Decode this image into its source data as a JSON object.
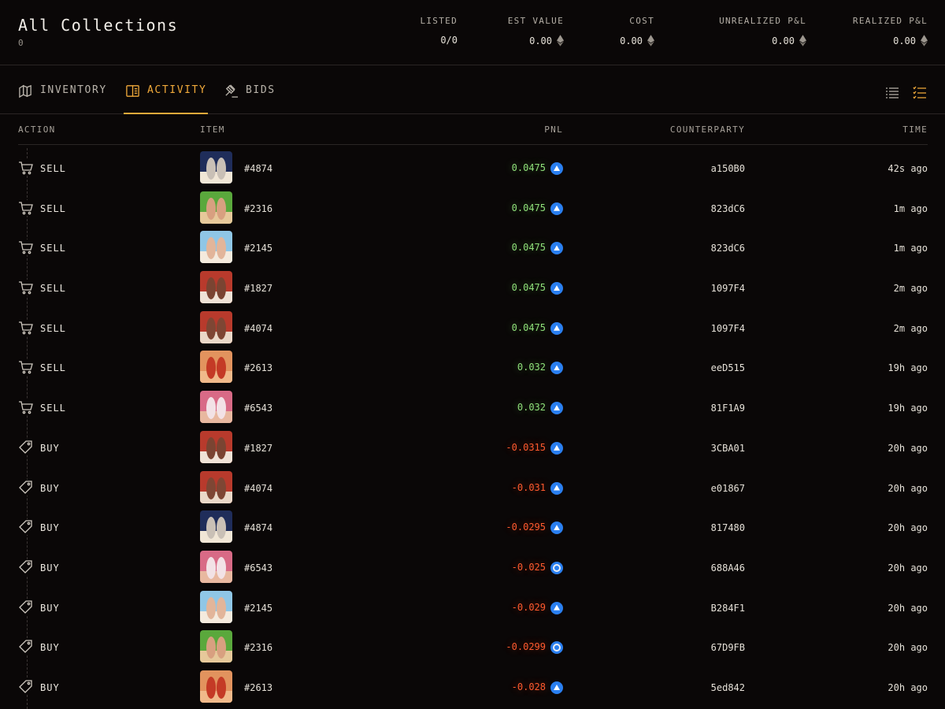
{
  "header": {
    "title": "All Collections",
    "subtitle": "0",
    "stats": [
      {
        "label": "LISTED",
        "value": "0/0",
        "eth": false
      },
      {
        "label": "EST VALUE",
        "value": "0.00",
        "eth": true
      },
      {
        "label": "COST",
        "value": "0.00",
        "eth": true
      },
      {
        "label": "UNREALIZED P&L",
        "value": "0.00",
        "eth": true
      },
      {
        "label": "REALIZED P&L",
        "value": "0.00",
        "eth": true
      }
    ]
  },
  "tabs": [
    {
      "label": "INVENTORY",
      "icon": "inventory-icon",
      "active": false
    },
    {
      "label": "ACTIVITY",
      "icon": "activity-icon",
      "active": true
    },
    {
      "label": "BIDS",
      "icon": "gavel-icon",
      "active": false
    }
  ],
  "table": {
    "columns": {
      "action": "ACTION",
      "item": "ITEM",
      "pnl": "PNL",
      "counterparty": "COUNTERPARTY",
      "time": "TIME"
    },
    "rows": [
      {
        "action": "SELL",
        "item": "#4874",
        "pnl": "0.0475",
        "market": "blur",
        "counterparty": "a150B0",
        "time": "42s ago",
        "thumb": [
          "#1f2d5a",
          "#c9c0b6",
          "#f0e6d6"
        ]
      },
      {
        "action": "SELL",
        "item": "#2316",
        "pnl": "0.0475",
        "market": "blur",
        "counterparty": "823dC6",
        "time": "1m ago",
        "thumb": [
          "#5aa83c",
          "#d8a080",
          "#e6c89a"
        ]
      },
      {
        "action": "SELL",
        "item": "#2145",
        "pnl": "0.0475",
        "market": "blur",
        "counterparty": "823dC6",
        "time": "1m ago",
        "thumb": [
          "#8fc6e6",
          "#e2b59a",
          "#f4eadd"
        ]
      },
      {
        "action": "SELL",
        "item": "#1827",
        "pnl": "0.0475",
        "market": "blur",
        "counterparty": "1097F4",
        "time": "2m ago",
        "thumb": [
          "#b83a2c",
          "#7a4432",
          "#efe2d6"
        ]
      },
      {
        "action": "SELL",
        "item": "#4074",
        "pnl": "0.0475",
        "market": "blur",
        "counterparty": "1097F4",
        "time": "2m ago",
        "thumb": [
          "#b83a2c",
          "#7e4634",
          "#ead8c8"
        ]
      },
      {
        "action": "SELL",
        "item": "#2613",
        "pnl": "0.032",
        "market": "blur",
        "counterparty": "eeD515",
        "time": "19h ago",
        "thumb": [
          "#e2935e",
          "#c43a26",
          "#f0b98a"
        ]
      },
      {
        "action": "SELL",
        "item": "#6543",
        "pnl": "0.032",
        "market": "blur",
        "counterparty": "81F1A9",
        "time": "19h ago",
        "thumb": [
          "#d86a86",
          "#f2e2e6",
          "#e8b8a0"
        ]
      },
      {
        "action": "BUY",
        "item": "#1827",
        "pnl": "-0.0315",
        "market": "blur",
        "counterparty": "3CBA01",
        "time": "20h ago",
        "thumb": [
          "#b83a2c",
          "#7a4432",
          "#efe2d6"
        ]
      },
      {
        "action": "BUY",
        "item": "#4074",
        "pnl": "-0.031",
        "market": "blur",
        "counterparty": "e01867",
        "time": "20h ago",
        "thumb": [
          "#b83a2c",
          "#7e4634",
          "#ead8c8"
        ]
      },
      {
        "action": "BUY",
        "item": "#4874",
        "pnl": "-0.0295",
        "market": "blur",
        "counterparty": "817480",
        "time": "20h ago",
        "thumb": [
          "#1f2d5a",
          "#c9c0b6",
          "#f0e6d6"
        ]
      },
      {
        "action": "BUY",
        "item": "#6543",
        "pnl": "-0.025",
        "market": "opensea",
        "counterparty": "688A46",
        "time": "20h ago",
        "thumb": [
          "#d86a86",
          "#f2e2e6",
          "#e8b8a0"
        ]
      },
      {
        "action": "BUY",
        "item": "#2145",
        "pnl": "-0.029",
        "market": "blur",
        "counterparty": "B284F1",
        "time": "20h ago",
        "thumb": [
          "#8fc6e6",
          "#e2b59a",
          "#f4eadd"
        ]
      },
      {
        "action": "BUY",
        "item": "#2316",
        "pnl": "-0.0299",
        "market": "opensea",
        "counterparty": "67D9FB",
        "time": "20h ago",
        "thumb": [
          "#5aa83c",
          "#d8a080",
          "#e6c89a"
        ]
      },
      {
        "action": "BUY",
        "item": "#2613",
        "pnl": "-0.028",
        "market": "blur",
        "counterparty": "5ed842",
        "time": "20h ago",
        "thumb": [
          "#e2935e",
          "#c43a26",
          "#f0b98a"
        ]
      }
    ]
  },
  "colors": {
    "accent": "#f0a93a",
    "positive": "#8fe07a",
    "negative": "#ff5a2e",
    "background": "#0a0707"
  }
}
